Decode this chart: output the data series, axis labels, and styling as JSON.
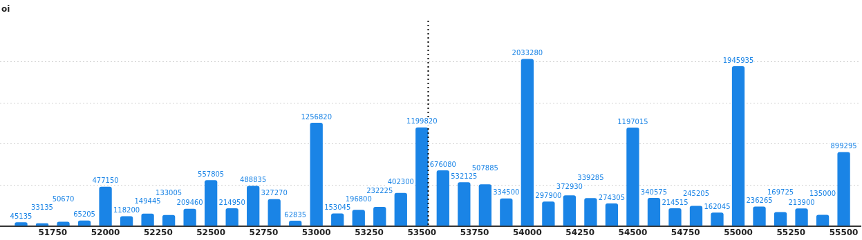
{
  "chart_data": {
    "type": "bar",
    "annotations": [
      "oi"
    ],
    "x": [
      51600,
      51700,
      51800,
      51900,
      52000,
      52100,
      52200,
      52300,
      52400,
      52500,
      52600,
      52700,
      52800,
      52900,
      53000,
      53100,
      53200,
      53300,
      53400,
      53500,
      53600,
      53700,
      53800,
      53900,
      54000,
      54100,
      54200,
      54300,
      54400,
      54500,
      54600,
      54700,
      54800,
      54900,
      55000,
      55100,
      55200,
      55300,
      55400,
      55500
    ],
    "series": [
      {
        "color": "#1a84e6",
        "values": [
          45135,
          33135,
          50670,
          65205,
          477150,
          118200,
          149445,
          133005,
          209460,
          557805,
          214950,
          488835,
          327270,
          62835,
          1256820,
          153045,
          196800,
          232225,
          402300,
          1199820,
          676080,
          532125,
          507885,
          334500,
          2033280,
          297900,
          372930,
          339285,
          274305,
          1197015,
          340575,
          214515,
          245205,
          162045,
          1945935,
          236265,
          169725,
          213900,
          135000,
          899295
        ]
      }
    ],
    "xlim": [
      51500,
      55580
    ],
    "xticks": [
      51750,
      52000,
      52250,
      52500,
      52750,
      53000,
      53250,
      53500,
      53750,
      54000,
      54250,
      54500,
      54750,
      55000,
      55250,
      55500
    ],
    "yticks": [
      {
        "value": 500000,
        "label": null
      },
      {
        "value": 1000000,
        "label": null
      },
      {
        "value": 1500000,
        "label": null
      },
      {
        "value": 2000000,
        "label": null
      }
    ],
    "ref_lines": [
      {
        "axis": "x",
        "value": 53530,
        "color": "#000000",
        "line_style": "dotted"
      }
    ],
    "grid": "y",
    "data_labels": true,
    "legend": false,
    "tick_labels": "x"
  }
}
